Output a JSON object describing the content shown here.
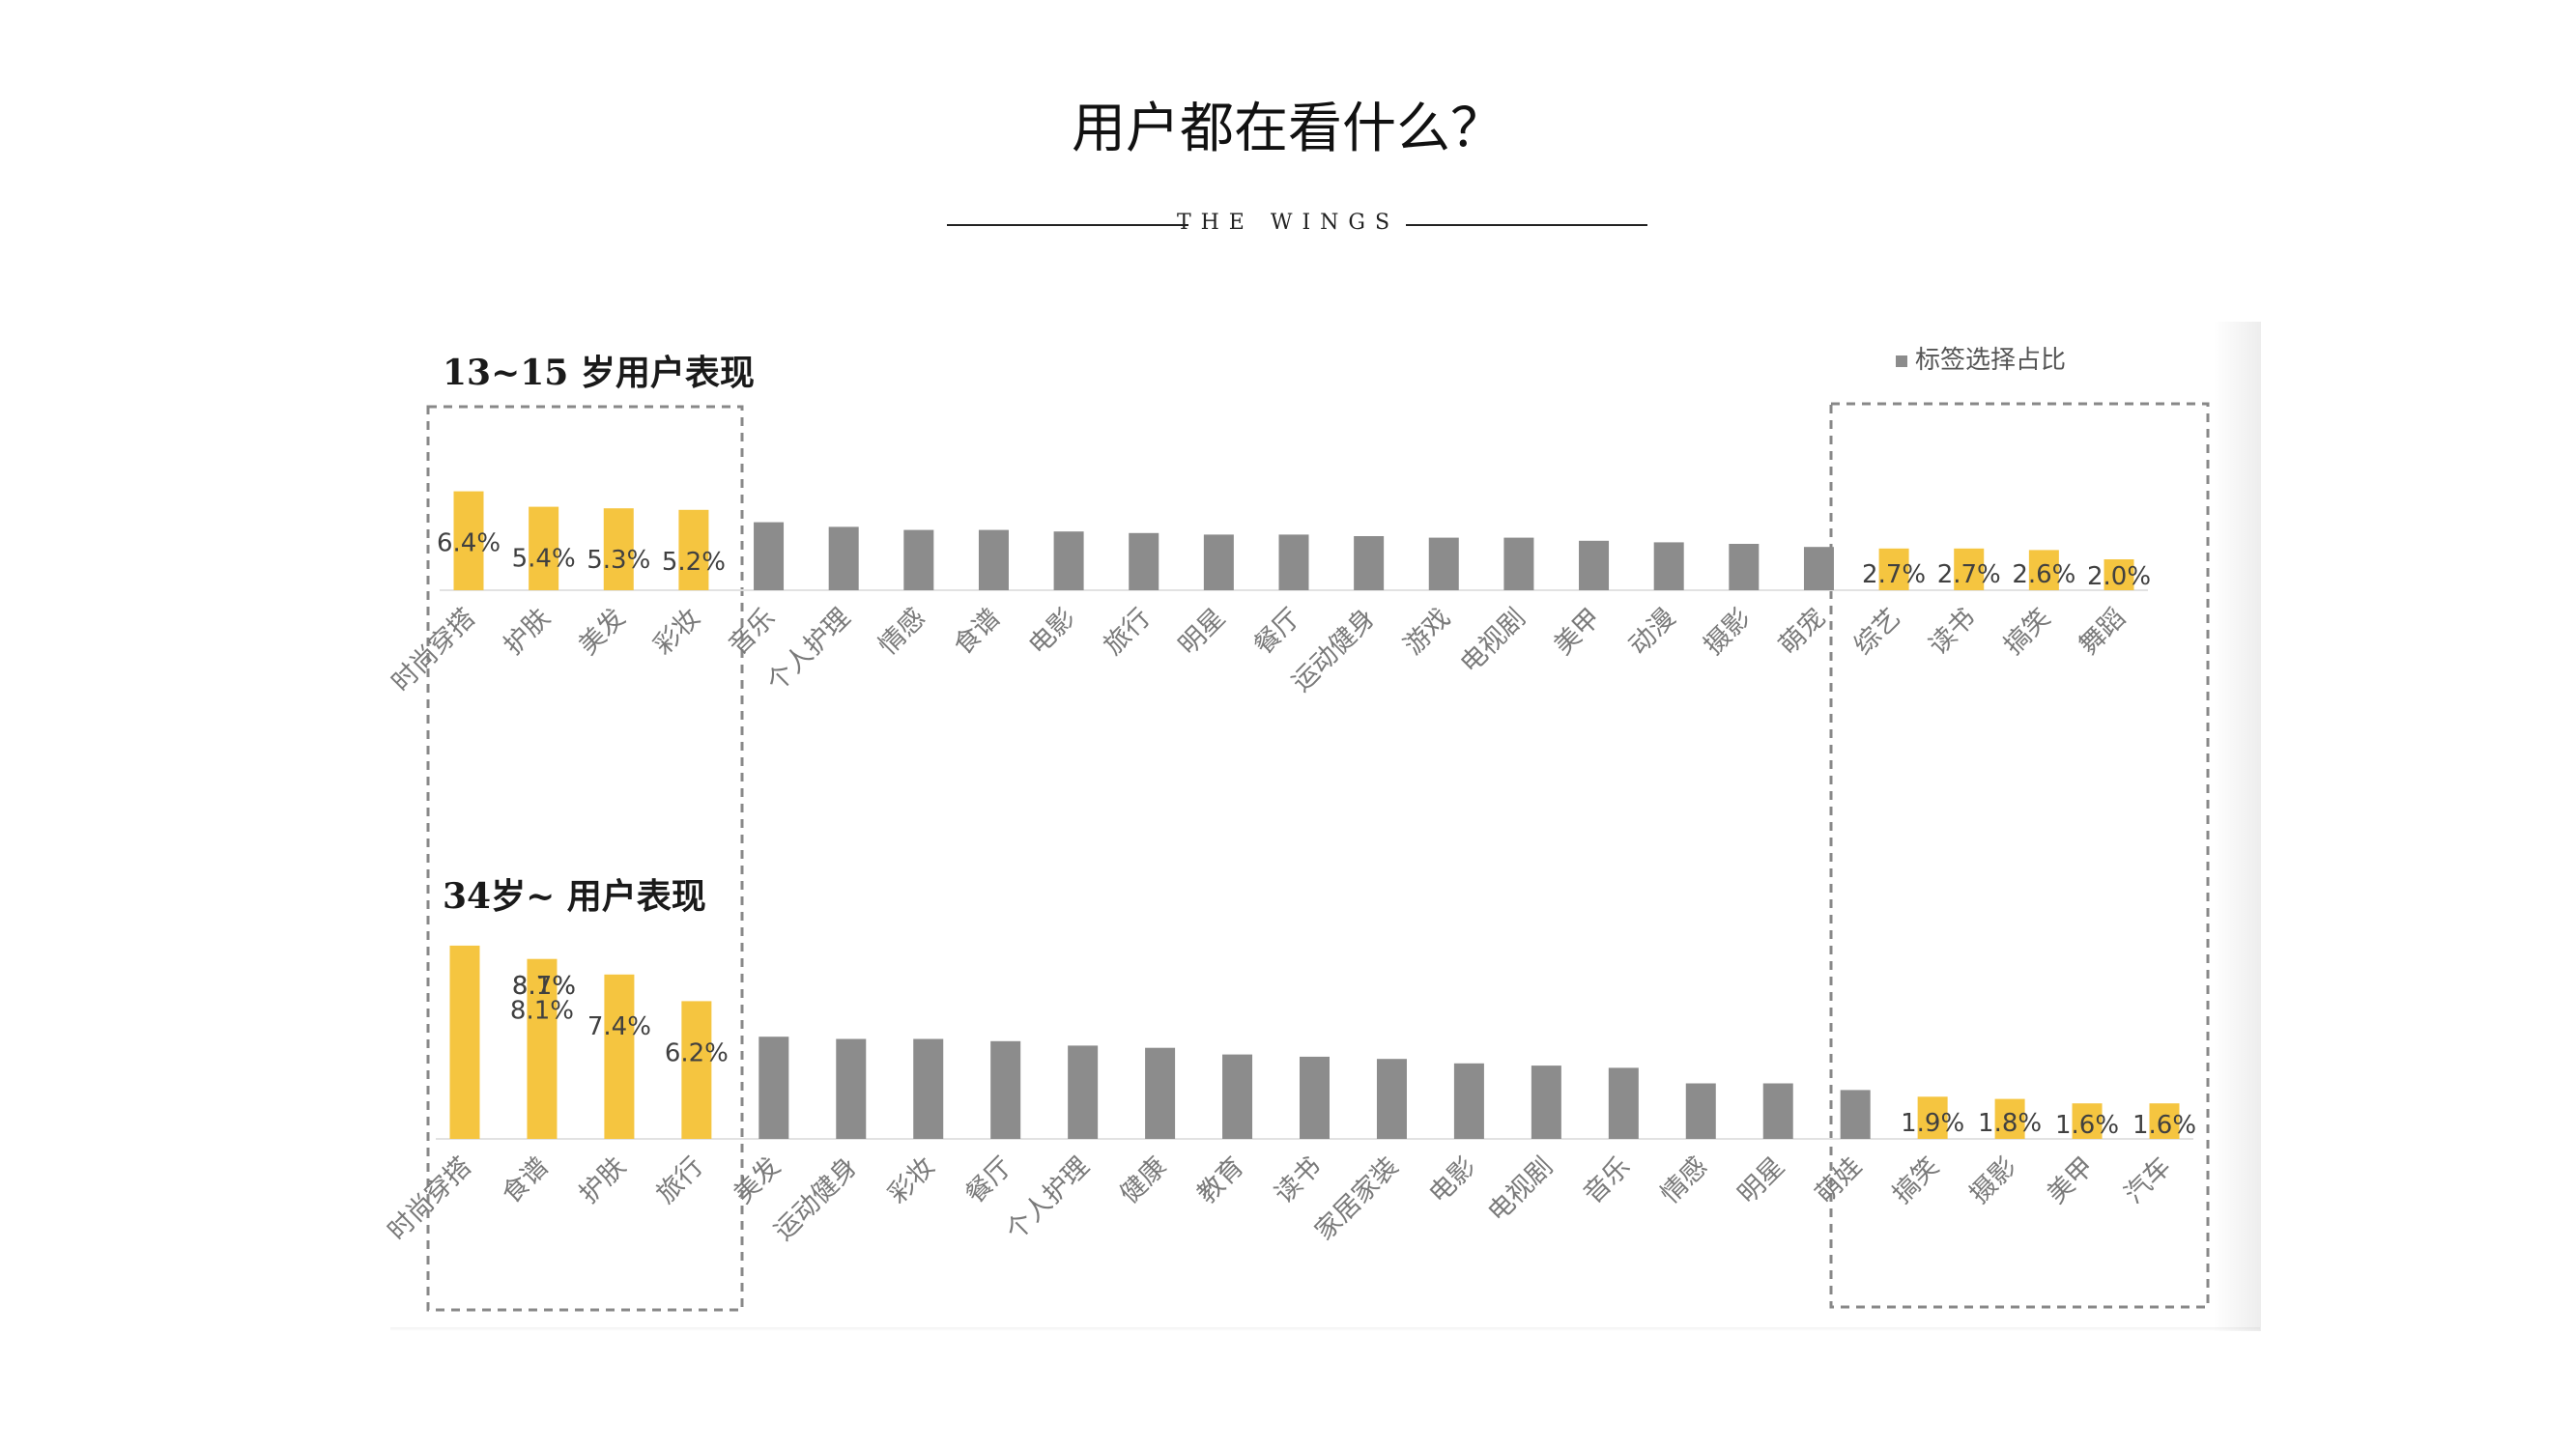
{
  "page": {
    "title": "用户都在看什么？",
    "subtitle": "THE WINGS"
  },
  "legend": {
    "label": "标签选择占比",
    "color": "#8c8c8c",
    "position": "top-right"
  },
  "colors": {
    "highlight": "#f5c540",
    "normal": "#8c8c8c",
    "box": "#888888"
  },
  "chart_data": [
    {
      "type": "bar",
      "title": "13~15 岁用户表现",
      "series": [
        {
          "name": "标签选择占比"
        }
      ],
      "categories": [
        "时尚穿搭",
        "护肤",
        "美发",
        "彩妆",
        "音乐",
        "个人护理",
        "情感",
        "食谱",
        "电影",
        "旅行",
        "明星",
        "餐厅",
        "运动健身",
        "游戏",
        "电视剧",
        "美甲",
        "动漫",
        "摄影",
        "萌宠",
        "综艺",
        "读书",
        "搞笑",
        "舞蹈"
      ],
      "values": [
        6.4,
        5.4,
        5.3,
        5.2,
        4.4,
        4.1,
        3.9,
        3.9,
        3.8,
        3.7,
        3.6,
        3.6,
        3.5,
        3.4,
        3.4,
        3.2,
        3.1,
        3.0,
        2.8,
        2.7,
        2.7,
        2.6,
        2.0
      ],
      "highlighted": [
        true,
        true,
        true,
        true,
        false,
        false,
        false,
        false,
        false,
        false,
        false,
        false,
        false,
        false,
        false,
        false,
        false,
        false,
        false,
        true,
        true,
        true,
        true
      ],
      "data_labels": [
        "6.4%",
        "5.4%",
        "5.3%",
        "5.2%",
        "",
        "",
        "",
        "",
        "",
        "",
        "",
        "",
        "",
        "",
        "",
        "",
        "",
        "",
        "",
        "2.7%",
        "2.7%",
        "2.6%",
        "2.0%"
      ]
    },
    {
      "type": "bar",
      "title": "34岁~ 用户表现",
      "series": [
        {
          "name": "标签选择占比"
        }
      ],
      "categories": [
        "时尚穿搭",
        "食谱",
        "护肤",
        "旅行",
        "美发",
        "运动健身",
        "彩妆",
        "餐厅",
        "个人护理",
        "健康",
        "教育",
        "读书",
        "家居家装",
        "电影",
        "电视剧",
        "音乐",
        "情感",
        "明星",
        "萌娃",
        "搞笑",
        "摄影",
        "美甲",
        "汽车"
      ],
      "values": [
        8.7,
        8.1,
        7.4,
        6.2,
        4.6,
        4.5,
        4.5,
        4.4,
        4.2,
        4.1,
        3.8,
        3.7,
        3.6,
        3.4,
        3.3,
        3.2,
        2.5,
        2.5,
        2.2,
        1.9,
        1.8,
        1.6,
        1.6
      ],
      "highlighted": [
        true,
        true,
        true,
        true,
        false,
        false,
        false,
        false,
        false,
        false,
        false,
        false,
        false,
        false,
        false,
        false,
        false,
        false,
        false,
        true,
        true,
        true,
        true
      ],
      "data_labels": [
        "",
        "8.1%",
        "7.4%",
        "6.2%",
        "",
        "",
        "",
        "",
        "",
        "",
        "",
        "",
        "",
        "",
        "",
        "",
        "",
        "",
        "",
        "1.9%",
        "1.8%",
        "1.6%",
        "1.6%"
      ],
      "overlap_labels": [
        "8.7%",
        "8.1%"
      ]
    }
  ]
}
